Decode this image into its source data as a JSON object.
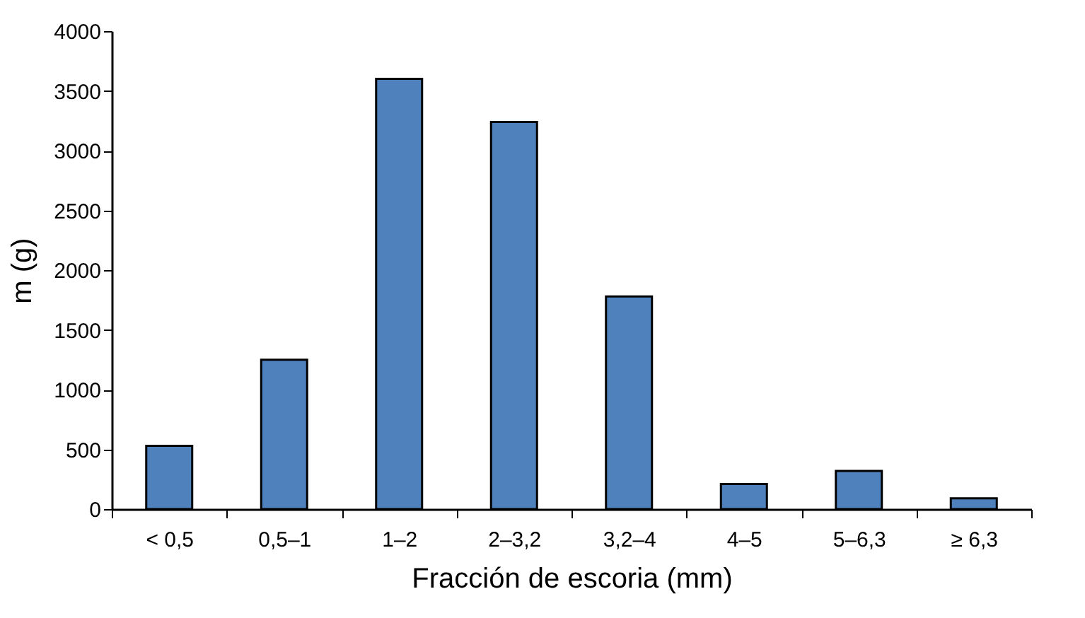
{
  "chart_data": {
    "type": "bar",
    "xlabel": "Fracción de escoria (mm)",
    "ylabel": "m (g)",
    "categories": [
      "< 0,5",
      "0,5–1",
      "1–2",
      "2–3,2",
      "3,2–4",
      "4–5",
      "5–6,3",
      "≥ 6,3"
    ],
    "values": [
      530,
      1250,
      3600,
      3240,
      1780,
      210,
      320,
      90
    ],
    "color": "#4f81bd",
    "ylim": [
      0,
      4000
    ],
    "yticks": [
      0,
      500,
      1000,
      1500,
      2000,
      2500,
      3000,
      3500,
      4000
    ],
    "grid": false
  }
}
